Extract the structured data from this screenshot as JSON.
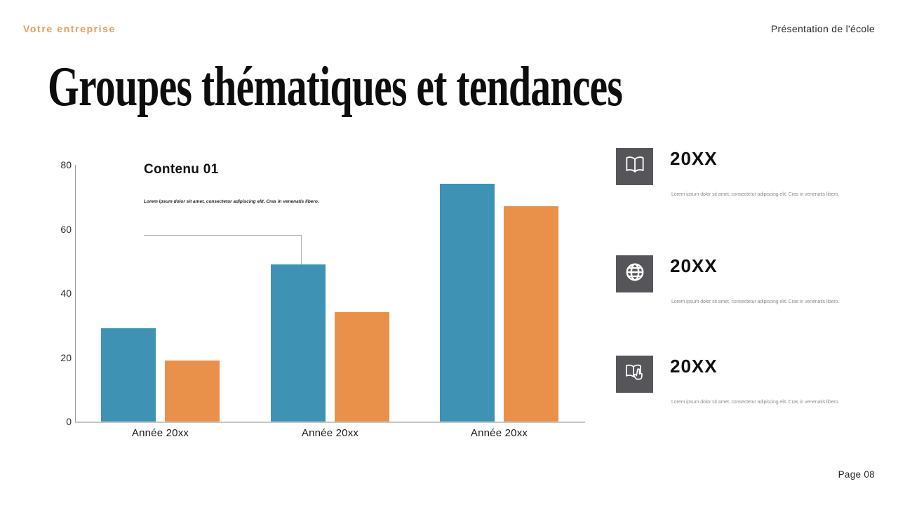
{
  "slide": {
    "brand": "Votre entreprise",
    "header_right": "Présentation de l'école",
    "title": "Groupes thématiques et tendances",
    "page_label": "Page 08"
  },
  "chart": {
    "heading": "Contenu 01",
    "caption": "Lorem ipsum dolor sit amet, consectetur adipiscing elit. Cras in venenatis libero."
  },
  "chart_data": {
    "type": "bar",
    "title": "Contenu 01",
    "categories": [
      "Année 20xx",
      "Année 20xx",
      "Année 20xx"
    ],
    "series": [
      {
        "name": "blue",
        "color": "#3e92b4",
        "values": [
          29,
          49,
          74
        ]
      },
      {
        "name": "orange",
        "color": "#e9914a",
        "values": [
          19,
          34,
          67
        ]
      }
    ],
    "ylim": [
      0,
      80
    ],
    "yticks": [
      0,
      20,
      40,
      60,
      80
    ],
    "grid": false,
    "legend": "none",
    "annotation": {
      "text": "Contenu 01",
      "series": "blue",
      "category_index": 1,
      "value": 45
    }
  },
  "milestones": [
    {
      "icon": "open-book-icon",
      "year": "20XX",
      "text": "Lorem ipsum dolor sit amet, consectetur adipiscing elit. Cras in venenatis libero."
    },
    {
      "icon": "globe-icon",
      "year": "20XX",
      "text": "Lorem ipsum dolor sit amet, consectetur adipiscing elit. Cras in venenatis libero."
    },
    {
      "icon": "book-hand-icon",
      "year": "20XX",
      "text": "Lorem ipsum dolor sit amet, consectetur adipiscing elit. Cras in venenatis libero."
    }
  ],
  "colors": {
    "accent_orange": "#ec9b53",
    "bar_blue": "#3e92b4",
    "bar_orange": "#e9914a",
    "icon_background": "#56565a",
    "axis_gray": "#9d9d9d"
  }
}
